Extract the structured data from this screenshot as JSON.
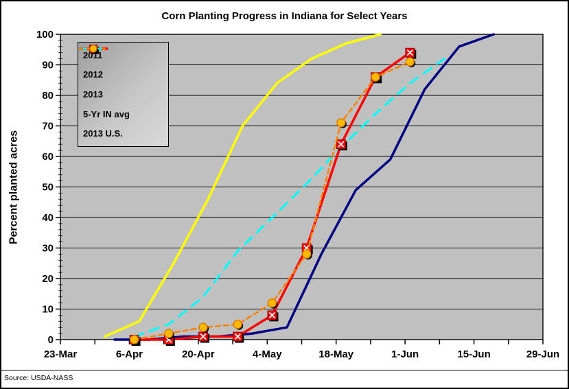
{
  "figure": {
    "title": "Corn Planting Progress in Indiana for Select Years",
    "source_note": "Source: USDA-NASS"
  },
  "chart_data": {
    "type": "line",
    "title": "Corn Planting Progress in Indiana for Select Years",
    "xlabel": "",
    "ylabel": "Percent planted acres",
    "ylim": [
      0,
      100
    ],
    "yticks": [
      0,
      10,
      20,
      30,
      40,
      50,
      60,
      70,
      80,
      90,
      100
    ],
    "x_major_tick_labels": [
      "23-Mar",
      "6-Apr",
      "20-Apr",
      "4-May",
      "18-May",
      "1-Jun",
      "15-Jun",
      "29-Jun"
    ],
    "x_axis_span_days": 98,
    "x_major_interval_days": 14,
    "x_minor_interval_days": 7,
    "grid": "horizontal-major",
    "plot_background": "#c0c0c0",
    "legend_position": "top-left-inside",
    "series": [
      {
        "name": "2011",
        "color": "#000080",
        "line_style": "solid",
        "marker": "none",
        "dates": [
          "3-Apr",
          "10-Apr",
          "17-Apr",
          "24-Apr",
          "1-May",
          "8-May",
          "15-May",
          "22-May",
          "29-May",
          "5-Jun",
          "12-Jun",
          "19-Jun"
        ],
        "days_from_23_mar": [
          11,
          18,
          25,
          32,
          39,
          46,
          53,
          60,
          67,
          74,
          81,
          88
        ],
        "values": [
          0,
          0,
          1,
          1,
          2,
          4,
          28,
          49,
          59,
          82,
          96,
          100
        ]
      },
      {
        "name": "2012",
        "color": "#ffff00",
        "line_style": "solid",
        "marker": "none",
        "dates": [
          "1-Apr",
          "8-Apr",
          "15-Apr",
          "22-Apr",
          "29-Apr",
          "6-May",
          "13-May",
          "20-May",
          "27-May"
        ],
        "days_from_23_mar": [
          9,
          16,
          23,
          30,
          37,
          44,
          51,
          58,
          65
        ],
        "values": [
          1,
          6,
          25,
          46,
          70,
          84,
          92,
          97,
          100
        ]
      },
      {
        "name": "2013",
        "color": "#ff0000",
        "line_style": "solid",
        "marker": "square-x",
        "marker_fill": "#ff0000",
        "dates": [
          "7-Apr",
          "14-Apr",
          "21-Apr",
          "28-Apr",
          "5-May",
          "12-May",
          "19-May",
          "26-May",
          "2-Jun"
        ],
        "days_from_23_mar": [
          15,
          22,
          29,
          36,
          43,
          50,
          57,
          64,
          71
        ],
        "values": [
          0,
          0,
          1,
          1,
          8,
          30,
          64,
          86,
          94
        ]
      },
      {
        "name": "5-Yr IN avg",
        "color": "#00ffff",
        "line_style": "dashed",
        "marker": "none",
        "dates": [
          "7-Apr",
          "14-Apr",
          "21-Apr",
          "28-Apr",
          "5-May",
          "12-May",
          "19-May",
          "26-May",
          "2-Jun",
          "9-Jun"
        ],
        "days_from_23_mar": [
          15,
          22,
          29,
          36,
          43,
          50,
          57,
          64,
          71,
          78
        ],
        "values": [
          1,
          5,
          14,
          29,
          40,
          51,
          63,
          74,
          84,
          92
        ]
      },
      {
        "name": "2013 U.S.",
        "color": "#ff8000",
        "line_style": "dashed",
        "marker": "circle",
        "marker_fill": "#ffb900",
        "dates": [
          "7-Apr",
          "14-Apr",
          "21-Apr",
          "28-Apr",
          "5-May",
          "12-May",
          "19-May",
          "26-May",
          "2-Jun"
        ],
        "days_from_23_mar": [
          15,
          22,
          29,
          36,
          43,
          50,
          57,
          64,
          71
        ],
        "values": [
          0,
          2,
          4,
          5,
          12,
          28,
          71,
          86,
          91
        ]
      }
    ]
  }
}
